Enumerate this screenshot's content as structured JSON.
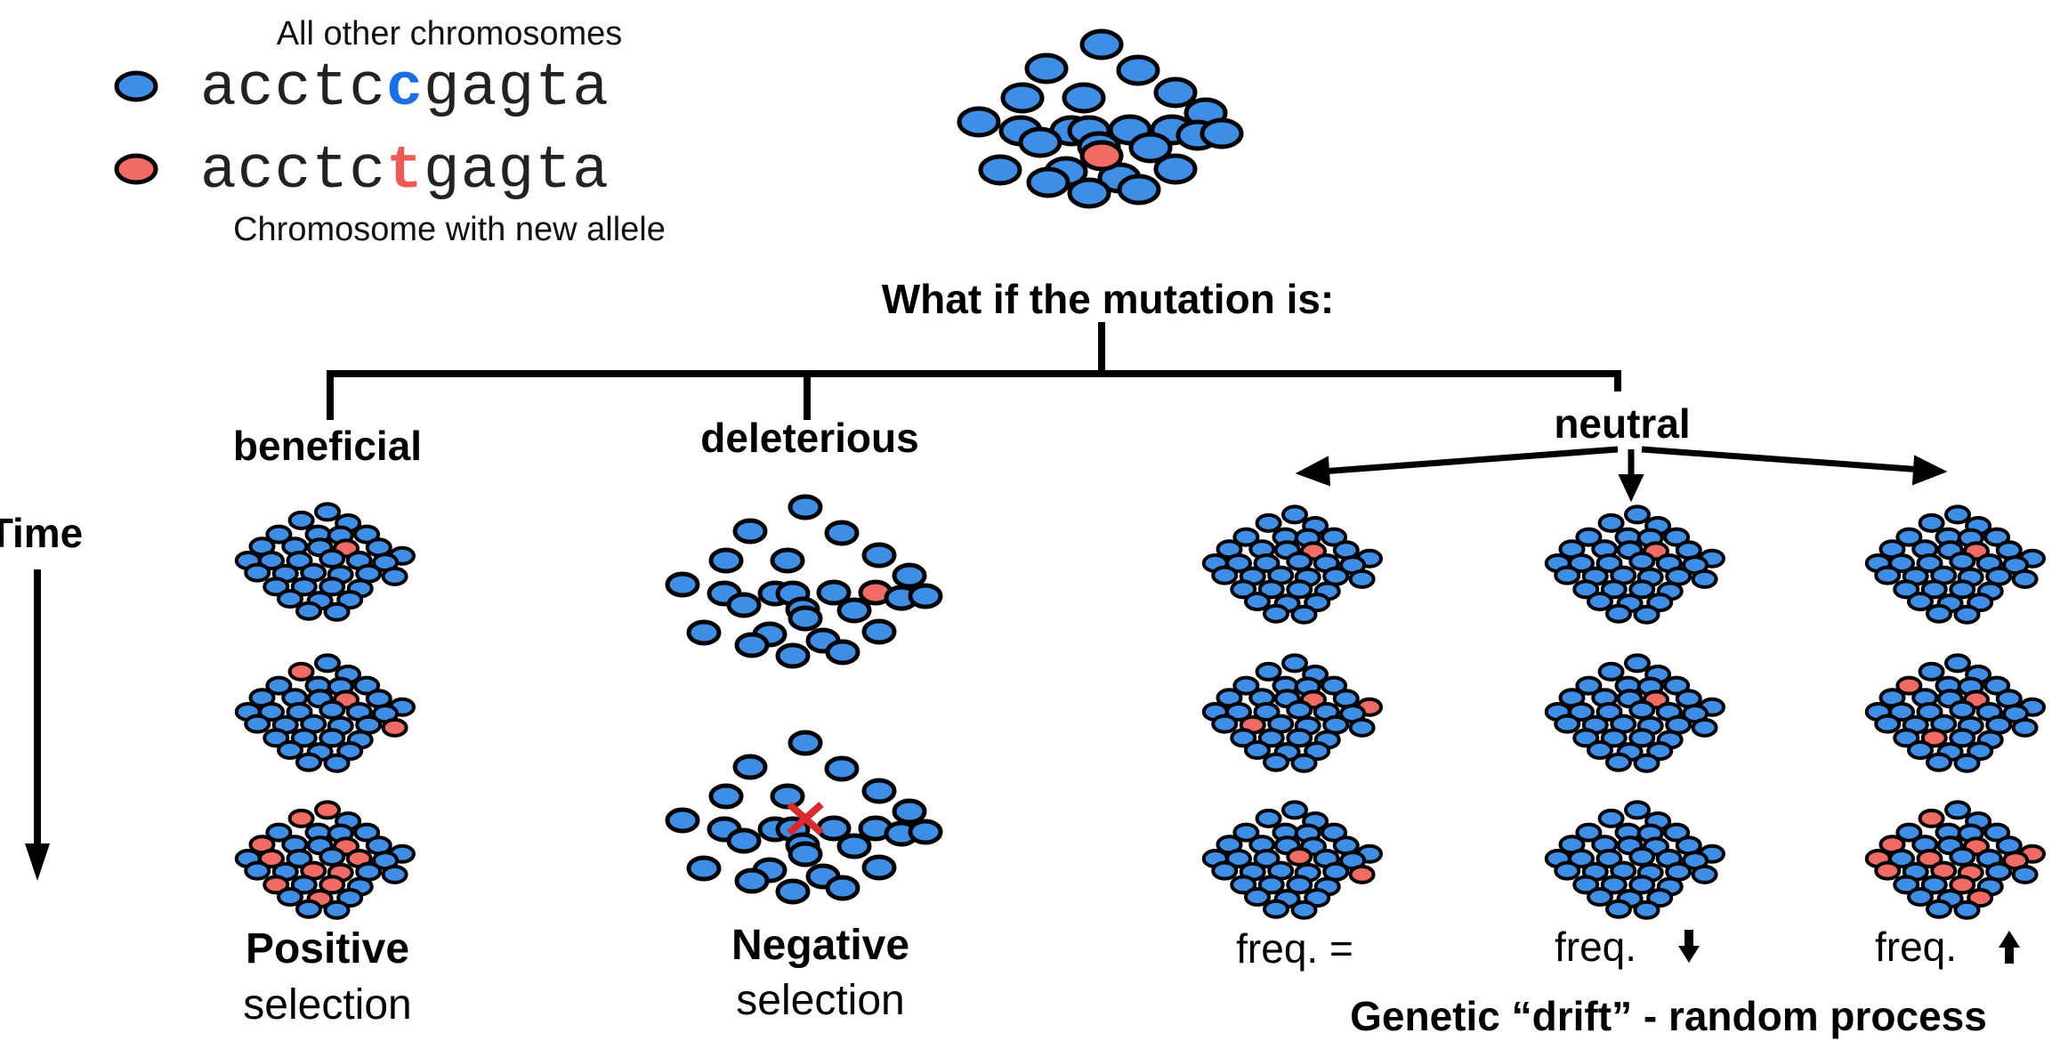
{
  "colors": {
    "blue_fill": "#3f8ee6",
    "red_fill": "#ef6b63",
    "outline": "#000000",
    "blue_text": "#1a6fe6",
    "red_text": "#ef5a55",
    "x_mark": "#d92b2b"
  },
  "legend": {
    "top_label": "All other chromosomes",
    "blue_seq": {
      "prefix": "acctc",
      "base": "c",
      "suffix": "gagta"
    },
    "red_seq": {
      "prefix": "acctc",
      "base": "t",
      "suffix": "gagta"
    },
    "bottom_label": "Chromosome with new allele"
  },
  "question": "What if the mutation is:",
  "branches": {
    "beneficial": "beneficial",
    "deleterious": "deleterious",
    "neutral": "neutral"
  },
  "time_label": "Time",
  "captions": {
    "positive_bold": "Positive",
    "positive_rest": "selection",
    "negative_bold": "Negative",
    "negative_rest": "selection",
    "freq_equal": "freq. =",
    "freq_down": "freq.",
    "freq_up": "freq.",
    "down_arrow_icon": "down-arrow-icon",
    "up_arrow_icon": "up-arrow-icon",
    "drift": "Genetic “drift” - random process"
  },
  "populations": {
    "top": {
      "red_count": 1
    },
    "beneficial": [
      {
        "red_count": 1
      },
      {
        "red_count": 4
      },
      {
        "red_count": 11
      }
    ],
    "deleterious": [
      {
        "red_count": 1
      },
      {
        "red_count": 0,
        "lost": true
      }
    ],
    "neutral_equal": [
      {
        "red_count": 1
      },
      {
        "red_count": 3
      },
      {
        "red_count": 2
      }
    ],
    "neutral_down": [
      {
        "red_count": 1
      },
      {
        "red_count": 1
      },
      {
        "red_count": 0
      }
    ],
    "neutral_up": [
      {
        "red_count": 1
      },
      {
        "red_count": 3
      },
      {
        "red_count": 12
      }
    ]
  }
}
